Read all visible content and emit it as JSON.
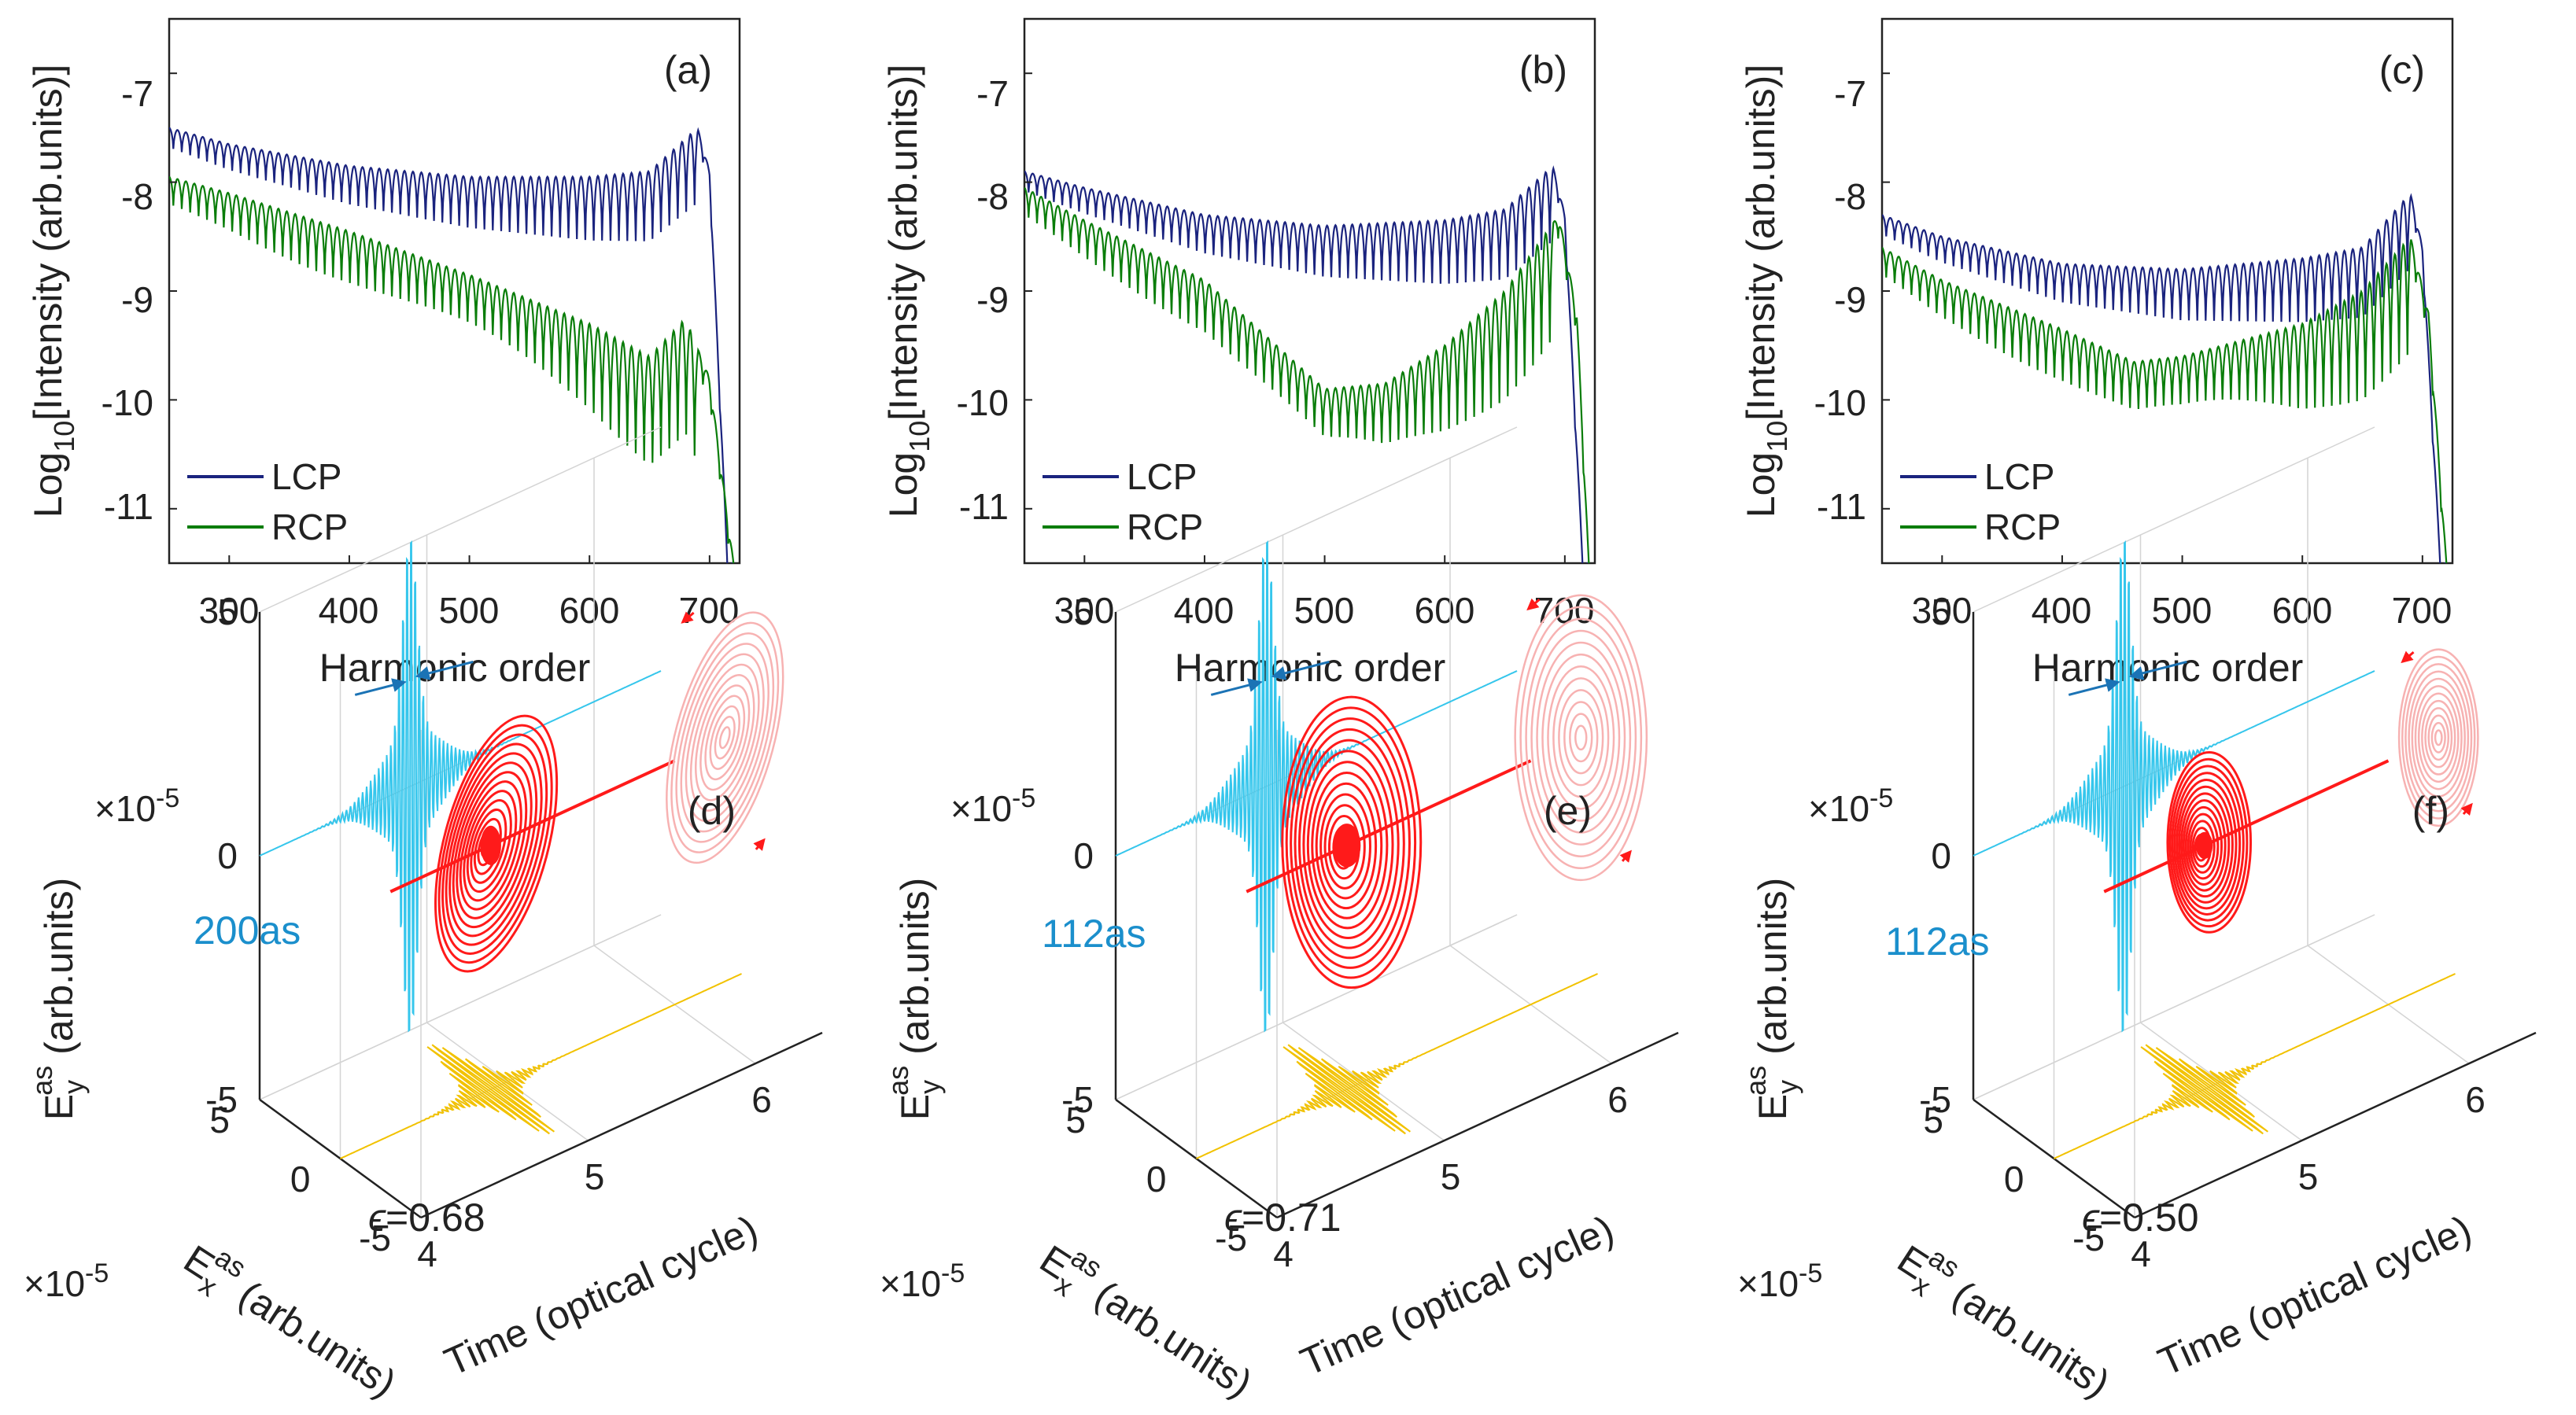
{
  "colors": {
    "lcp": "#1a237e",
    "rcp": "#0a7d0a",
    "ey_trace": "#35c6ec",
    "ex_trace": "#f2c200",
    "ellipse": "#ff1a1a",
    "ellipse_proj": "#f7b2b2",
    "arrow": "#1b73b5",
    "width_text": "#1b8fcc"
  },
  "spectra": {
    "x_label": "Harmonic order",
    "y_label_main": "Log",
    "y_label_sub": "10",
    "y_label_rest": "[Intensity (arb.units)]",
    "x_ticks": [
      "300",
      "400",
      "500",
      "600",
      "700"
    ],
    "y_ticks": [
      "-7",
      "-8",
      "-9",
      "-10",
      "-11"
    ],
    "legend": [
      "LCP",
      "RCP"
    ]
  },
  "pulses": {
    "ey_main": "E",
    "ey_sub": "y",
    "ey_sup": "as",
    "ey_rest": "(arb.units)",
    "ex_main": "E",
    "ex_sub": "x",
    "ex_sup": "as",
    "ex_rest": "(arb.units)",
    "time_label": "Time (optical cycle)",
    "scale_main": "×10",
    "scale_exp": "-5",
    "ey_ticks": [
      "5",
      "0",
      "-5"
    ],
    "ex_ticks": [
      "5",
      "0",
      "-5"
    ],
    "time_ticks": [
      "4",
      "5",
      "6"
    ],
    "epsilon_symbol": "ϵ"
  },
  "chart_data": [
    {
      "panel": "(a)",
      "type": "line",
      "xlabel": "Harmonic order",
      "ylabel": "Log10[Intensity (arb.units)]",
      "xlim": [
        250,
        725
      ],
      "ylim": [
        -11.5,
        -6.5
      ],
      "series": [
        {
          "name": "LCP",
          "x": [
            250,
            300,
            400,
            500,
            600,
            650,
            690,
            700,
            715
          ],
          "y": [
            -7.5,
            -7.65,
            -7.85,
            -7.95,
            -7.95,
            -7.9,
            -7.5,
            -7.9,
            -11.5
          ]
        },
        {
          "name": "RCP",
          "x": [
            250,
            300,
            400,
            500,
            600,
            650,
            680,
            700,
            720
          ],
          "y": [
            -7.95,
            -8.1,
            -8.45,
            -8.85,
            -9.3,
            -9.6,
            -9.25,
            -9.8,
            -11.5
          ]
        }
      ]
    },
    {
      "panel": "(b)",
      "type": "line",
      "xlabel": "Harmonic order",
      "ylabel": "Log10[Intensity (arb.units)]",
      "xlim": [
        250,
        725
      ],
      "ylim": [
        -11.5,
        -6.5
      ],
      "series": [
        {
          "name": "LCP",
          "x": [
            250,
            300,
            400,
            500,
            600,
            650,
            690,
            700,
            715
          ],
          "y": [
            -7.9,
            -8.05,
            -8.3,
            -8.4,
            -8.35,
            -8.25,
            -7.85,
            -8.3,
            -11.5
          ]
        },
        {
          "name": "RCP",
          "x": [
            250,
            300,
            400,
            450,
            500,
            550,
            600,
            650,
            695,
            710,
            720
          ],
          "y": [
            -8.05,
            -8.35,
            -8.9,
            -9.4,
            -9.9,
            -9.85,
            -9.5,
            -9.0,
            -8.3,
            -9.2,
            -11.5
          ]
        }
      ]
    },
    {
      "panel": "(c)",
      "type": "line",
      "xlabel": "Harmonic order",
      "ylabel": "Log10[Intensity (arb.units)]",
      "xlim": [
        250,
        725
      ],
      "ylim": [
        -11.5,
        -6.5
      ],
      "series": [
        {
          "name": "LCP",
          "x": [
            250,
            300,
            400,
            500,
            600,
            650,
            690,
            700,
            715
          ],
          "y": [
            -8.3,
            -8.5,
            -8.75,
            -8.8,
            -8.7,
            -8.6,
            -8.1,
            -8.6,
            -11.5
          ]
        },
        {
          "name": "RCP",
          "x": [
            250,
            300,
            400,
            460,
            500,
            600,
            650,
            690,
            705,
            720
          ],
          "y": [
            -8.6,
            -8.9,
            -9.35,
            -9.65,
            -9.6,
            -9.3,
            -9.0,
            -8.5,
            -9.2,
            -11.5
          ]
        }
      ]
    },
    {
      "panel": "(d)",
      "type": "line3d",
      "epsilon": "=0.68",
      "pulse_width": "200as",
      "ellipse": {
        "ex_amplitude": 3.0,
        "ey_amplitude": 3.8,
        "tilt_deg": 15,
        "time_center": 4.9,
        "rotation_marks": [
          "ccw"
        ]
      }
    },
    {
      "panel": "(e)",
      "type": "line3d",
      "epsilon": "=0.71",
      "pulse_width": "112as",
      "ellipse": {
        "ex_amplitude": 4.0,
        "ey_amplitude": 4.2,
        "tilt_deg": 0,
        "time_center": 4.9
      }
    },
    {
      "panel": "(f)",
      "type": "line3d",
      "epsilon": "=0.50",
      "pulse_width": "112as",
      "ellipse": {
        "ex_amplitude": 2.4,
        "ey_amplitude": 2.6,
        "tilt_deg": 0,
        "time_center": 4.9
      }
    }
  ]
}
